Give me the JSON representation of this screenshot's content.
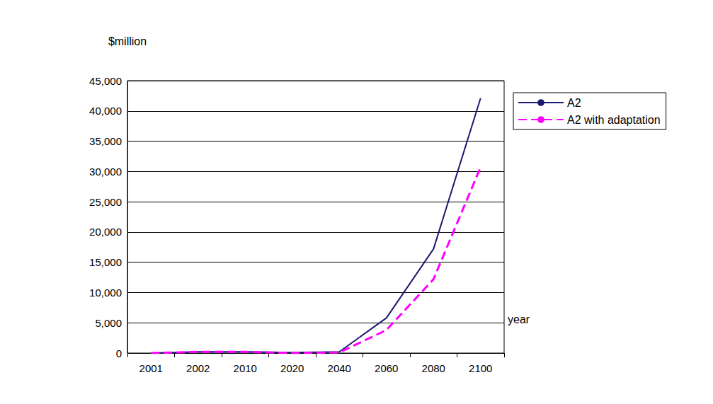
{
  "chart_data": {
    "type": "line",
    "x_label": "year",
    "y_label": "$million",
    "categories": [
      "2001",
      "2002",
      "2010",
      "2020",
      "2040",
      "2060",
      "2080",
      "2100"
    ],
    "series": [
      {
        "name": "A2",
        "color": "#1a1a6e",
        "line_style": "solid",
        "values": [
          0,
          200,
          200,
          100,
          200,
          5800,
          17200,
          42100
        ]
      },
      {
        "name": "A2 with adaptation",
        "color": "#ff00ff",
        "line_style": "dashed",
        "values": [
          0,
          200,
          200,
          0,
          100,
          3800,
          12200,
          30700
        ]
      }
    ],
    "ylim": [
      0,
      45000
    ],
    "yticks": [
      0,
      {
        "value": 5000,
        "label": "5,000"
      },
      {
        "value": 10000,
        "label": "10,000"
      },
      {
        "value": 15000,
        "label": "15,000"
      },
      {
        "value": 20000,
        "label": "20,000"
      },
      {
        "value": 25000,
        "label": "25,000"
      },
      {
        "value": 30000,
        "label": "30,000"
      },
      {
        "value": 35000,
        "label": "35,000"
      },
      {
        "value": 40000,
        "label": "40,000"
      },
      {
        "value": 45000,
        "label": "45,000"
      }
    ],
    "grid": true,
    "legend": "right"
  }
}
